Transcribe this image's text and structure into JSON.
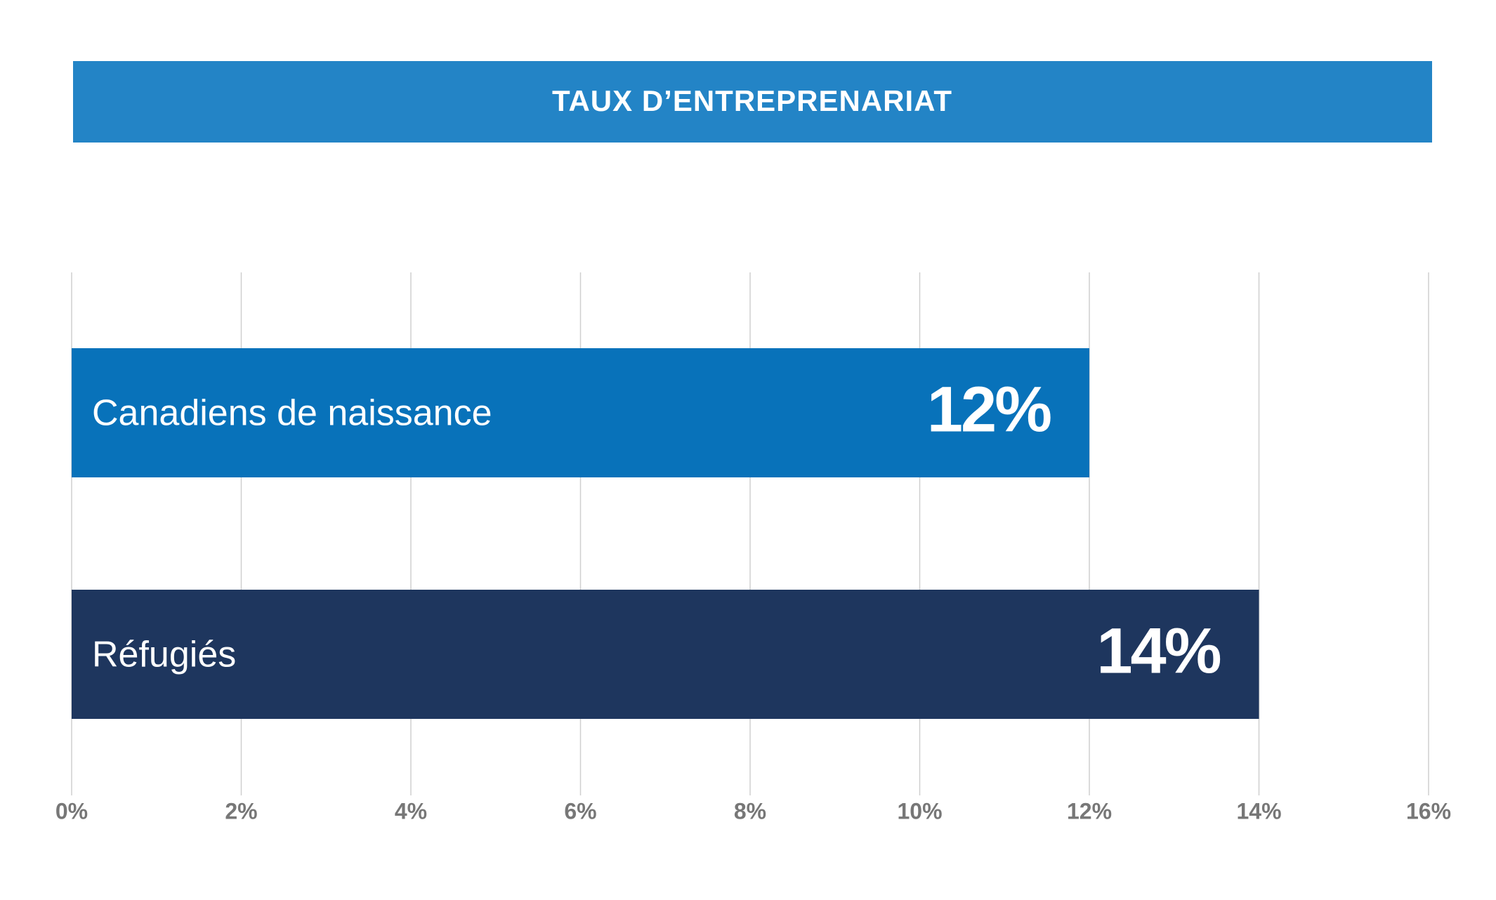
{
  "chart_data": {
    "type": "bar",
    "title": "TAUX D’ENTREPRENARIAT",
    "categories": [
      "Canadiens de naissance",
      "Réfugiés"
    ],
    "values": [
      12,
      14
    ],
    "value_labels": [
      "12%",
      "14%"
    ],
    "colors": [
      "#0872ba",
      "#1e365e"
    ],
    "xlim": [
      0,
      16
    ],
    "xticks": [
      {
        "value": 0,
        "label": "0%"
      },
      {
        "value": 2,
        "label": "2%"
      },
      {
        "value": 4,
        "label": "4%"
      },
      {
        "value": 6,
        "label": "6%"
      },
      {
        "value": 8,
        "label": "8%"
      },
      {
        "value": 10,
        "label": "10%"
      },
      {
        "value": 12,
        "label": "12%"
      },
      {
        "value": 14,
        "label": "14%"
      },
      {
        "value": 16,
        "label": "16%"
      }
    ],
    "grid": true
  }
}
